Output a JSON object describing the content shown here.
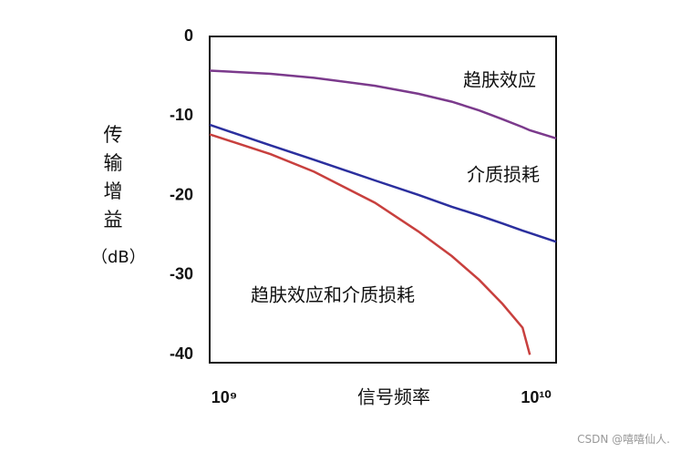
{
  "chart_data": {
    "type": "line",
    "y_label": "传输增益",
    "y_unit": "（dB）",
    "x_label": "信号频率",
    "annotations": [
      "趋肤效应",
      "介质损耗",
      "趋肤效应和介质损耗"
    ],
    "watermark": "CSDN @嘻嘻仙人.",
    "x": [
      1000000000,
      1500000000,
      2000000000,
      3000000000,
      4000000000,
      5000000000,
      6000000000,
      7000000000,
      8000000000,
      8400000000,
      10000000000
    ],
    "x_log": true,
    "xlim": [
      1000000000,
      10000000000
    ],
    "xticks": [
      {
        "value": 1000000000,
        "label": "10⁹"
      },
      {
        "value": 10000000000,
        "label": "10¹⁰"
      }
    ],
    "ylim": [
      -41,
      0
    ],
    "yticks": [
      0,
      -10,
      -20,
      -30,
      -40
    ],
    "grid": false,
    "series": [
      {
        "name": "趋肤效应",
        "color": "#7b3a8c",
        "values": [
          -4.3,
          -4.7,
          -5.2,
          -6.2,
          -7.2,
          -8.2,
          -9.3,
          -10.4,
          -11.4,
          -11.8,
          -12.8
        ]
      },
      {
        "name": "介质损耗",
        "color": "#2b2f9e",
        "values": [
          -11.1,
          -13.7,
          -15.5,
          -18.1,
          -19.9,
          -21.4,
          -22.5,
          -23.5,
          -24.4,
          -24.7,
          -25.8
        ]
      },
      {
        "name": "趋肤效应和介质损耗",
        "color": "#c8403e",
        "values": [
          -12.3,
          -14.8,
          -17.0,
          -20.9,
          -24.5,
          -27.6,
          -30.6,
          -33.6,
          -36.6,
          -40.0,
          null
        ]
      }
    ]
  }
}
